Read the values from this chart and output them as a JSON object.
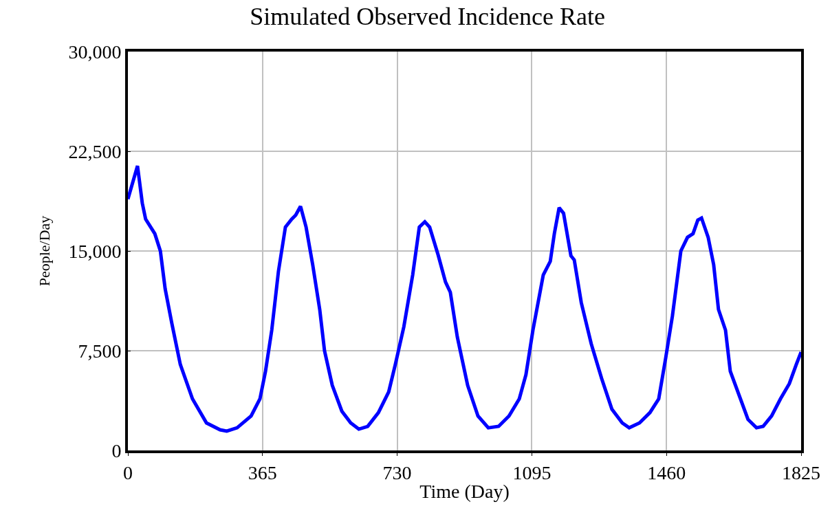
{
  "chart_data": {
    "type": "line",
    "title": "Simulated Observed Incidence Rate",
    "xlabel": "Time (Day)",
    "ylabel": "People/Day",
    "xlim": [
      0,
      1825
    ],
    "xticks": [
      0,
      365,
      730,
      1095,
      1460,
      1825
    ],
    "ylim": [
      0,
      30000
    ],
    "yticks": [
      {
        "value": 0,
        "label": "0"
      },
      {
        "value": 7500,
        "label": "7,500"
      },
      {
        "value": 15000,
        "label": "15,000"
      },
      {
        "value": 22500,
        "label": "22,500"
      },
      {
        "value": 30000,
        "label": "30,000"
      }
    ],
    "grid": true,
    "marker": "none",
    "line_style": "solid",
    "series": [
      {
        "color": "#0000ff",
        "x": [
          0,
          26,
          39,
          48,
          73,
          88,
          101,
          119,
          142,
          175,
          213,
          250,
          268,
          296,
          334,
          358,
          373,
          390,
          408,
          427,
          444,
          455,
          468,
          483,
          501,
          520,
          533,
          554,
          580,
          604,
          626,
          650,
          679,
          707,
          725,
          748,
          772,
          790,
          805,
          818,
          841,
          861,
          874,
          893,
          921,
          949,
          977,
          1005,
          1033,
          1061,
          1079,
          1098,
          1126,
          1145,
          1156,
          1169,
          1181,
          1201,
          1210,
          1229,
          1256,
          1284,
          1312,
          1340,
          1359,
          1387,
          1415,
          1439,
          1458,
          1476,
          1499,
          1517,
          1532,
          1545,
          1555,
          1573,
          1588,
          1601,
          1620,
          1633,
          1657,
          1681,
          1704,
          1722,
          1745,
          1769,
          1793,
          1812,
          1825
        ],
        "values": [
          18900,
          21400,
          18600,
          17400,
          16300,
          15000,
          12150,
          9570,
          6470,
          3880,
          2070,
          1550,
          1450,
          1700,
          2590,
          3880,
          5950,
          9050,
          13450,
          16800,
          17400,
          17700,
          18360,
          16800,
          13960,
          10600,
          7500,
          4900,
          2950,
          2070,
          1600,
          1810,
          2840,
          4400,
          6470,
          9300,
          13200,
          16800,
          17200,
          16800,
          14700,
          12670,
          11900,
          8530,
          4900,
          2590,
          1700,
          1810,
          2590,
          3880,
          5690,
          9050,
          13200,
          14220,
          16300,
          18260,
          17840,
          14640,
          14330,
          11120,
          8020,
          5430,
          3100,
          2070,
          1700,
          2070,
          2840,
          3880,
          6980,
          10090,
          15000,
          16030,
          16300,
          17330,
          17480,
          16030,
          13960,
          10600,
          9050,
          5950,
          4140,
          2330,
          1700,
          1810,
          2590,
          3880,
          5020,
          6470,
          7400
        ]
      }
    ]
  }
}
